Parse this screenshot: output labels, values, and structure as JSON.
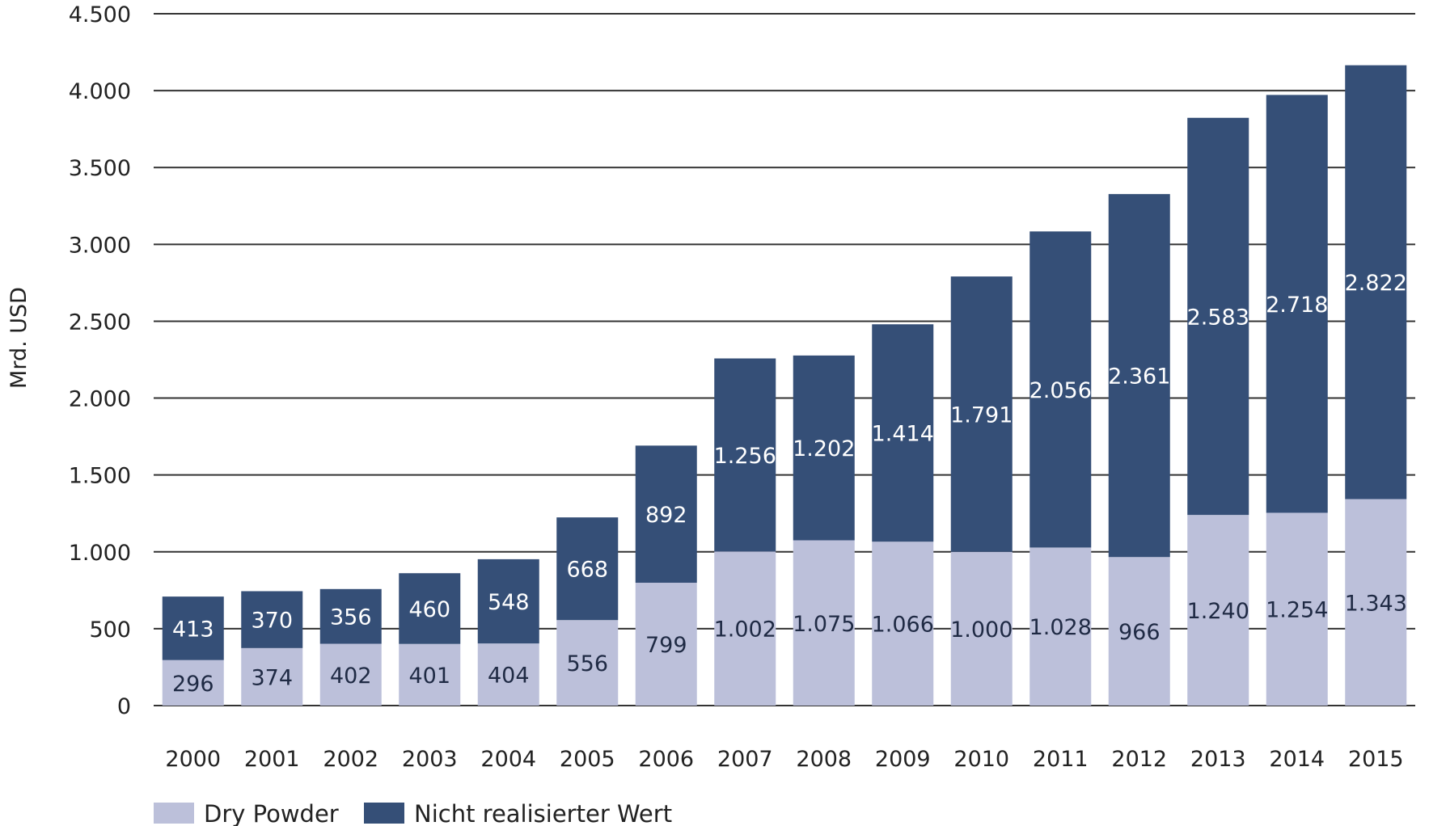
{
  "chart_data": {
    "type": "bar",
    "stacked": true,
    "title": "",
    "xlabel": "",
    "ylabel": "Mrd. USD",
    "ylim": [
      0,
      4500
    ],
    "y_ticks": [
      0,
      500,
      1000,
      1500,
      2000,
      2500,
      3000,
      3500,
      4000,
      4500
    ],
    "y_tick_labels": [
      "0",
      "500",
      "1.000",
      "1.500",
      "2.000",
      "2.500",
      "3.000",
      "3.500",
      "4.000",
      "4.500"
    ],
    "grid": true,
    "legend_position": "bottom-left",
    "categories": [
      "2000",
      "2001",
      "2002",
      "2003",
      "2004",
      "2005",
      "2006",
      "2007",
      "2008",
      "2009",
      "2010",
      "2011",
      "2012",
      "2013",
      "2014",
      "2015"
    ],
    "series": [
      {
        "name": "Dry Powder",
        "color": "#bcc0da",
        "values": [
          296,
          374,
          402,
          401,
          404,
          556,
          799,
          1002,
          1075,
          1066,
          1000,
          1028,
          966,
          1240,
          1254,
          1343
        ],
        "labels": [
          "296",
          "374",
          "402",
          "401",
          "404",
          "556",
          "799",
          "1.002",
          "1.075",
          "1.066",
          "1.000",
          "1.028",
          "966",
          "1.240",
          "1.254",
          "1.343"
        ]
      },
      {
        "name": "Nicht realisierter Wert",
        "color": "#354f77",
        "values": [
          413,
          370,
          356,
          460,
          548,
          668,
          892,
          1256,
          1202,
          1414,
          1791,
          2056,
          2361,
          2583,
          2718,
          2822
        ],
        "labels": [
          "413",
          "370",
          "356",
          "460",
          "548",
          "668",
          "892",
          "1.256",
          "1.202",
          "1.414",
          "1.791",
          "2.056",
          "2.361",
          "2.583",
          "2.718",
          "2.822"
        ]
      }
    ]
  }
}
